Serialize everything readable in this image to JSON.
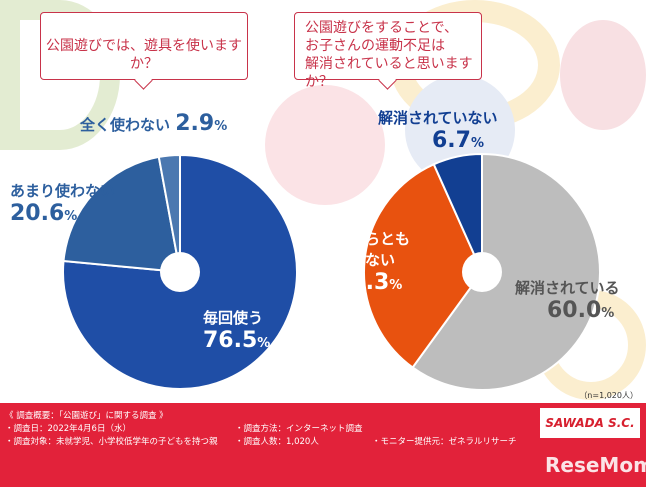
{
  "chart_data": [
    {
      "type": "pie",
      "title": "公園遊びでは、遊具を使いますか？",
      "categories": [
        "毎回使う",
        "あまり使わない",
        "全く使わない"
      ],
      "values": [
        76.5,
        20.6,
        2.9
      ],
      "colors": [
        "#1f4ea6",
        "#2d5f9e",
        "#4b78b0"
      ]
    },
    {
      "type": "pie",
      "title": "公園遊びをすることで、お子さんの運動不足は解消されていると思いますか？",
      "title_lines": [
        "公園遊びをすることで、",
        "お子さんの運動不足は",
        "解消されていると思いますか？"
      ],
      "categories": [
        "解消されている",
        "どちらともいえない",
        "解消されていない"
      ],
      "category_lines": [
        "どちらとも",
        "いえない"
      ],
      "values": [
        60.0,
        33.3,
        6.7
      ],
      "colors": [
        "#bdbdbd",
        "#e8520f",
        "#123f92"
      ]
    }
  ],
  "labels": {
    "p1": [
      "76.5",
      "%"
    ],
    "p2": [
      "20.6",
      "%"
    ],
    "p3": [
      "2.9",
      "%"
    ],
    "q1": [
      "60.0",
      "%"
    ],
    "q2": [
      "33.3",
      "%"
    ],
    "q3": [
      "6.7",
      "%"
    ]
  },
  "sample": "（n=1,020人）",
  "footer": {
    "heading": "《 調査概要：「公園遊び」に関する調査 》",
    "date": "・調査日：2022年4月6日（水）",
    "target": "・調査対象：未就学児、小学校低学年の子どもを持つ親",
    "method": "・調査方法：インターネット調査",
    "count": "・調査人数：1,020人",
    "monitor": "・モニター提供元：ゼネラルリサーチ",
    "logo1": "SAWADA S.C.",
    "logo2": "ReseMom"
  }
}
